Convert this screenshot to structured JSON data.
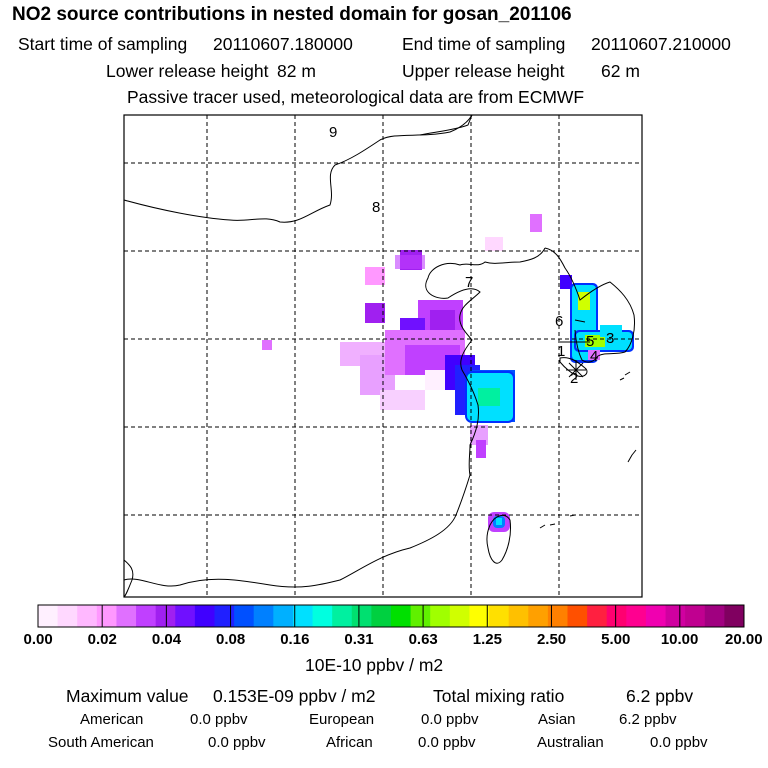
{
  "title": "NO2 source contributions in nested domain for gosan_201106",
  "sampling": {
    "start_label": "Start time of sampling",
    "start_value": "20110607.180000",
    "end_label": "End time of sampling",
    "end_value": "20110607.210000"
  },
  "release": {
    "lower_label": "Lower release height",
    "lower_value": "82 m",
    "upper_label": "Upper release height",
    "upper_value": "62 m"
  },
  "note": "Passive tracer used, meteorological data are from ECMWF",
  "map_labels": [
    "9",
    "8",
    "7",
    "6",
    "5",
    "3",
    "1",
    "4",
    "2"
  ],
  "colors": {
    "background": "#ffffff",
    "grid": "#000000",
    "coast": "#000000"
  },
  "colorbar": {
    "colors": [
      "#fff0ff",
      "#ffd8ff",
      "#ffb8ff",
      "#ff98ff",
      "#e070ff",
      "#c040ff",
      "#a020f0",
      "#7010ff",
      "#4000ff",
      "#2020ff",
      "#0050ff",
      "#0080ff",
      "#00b0ff",
      "#00e0ff",
      "#00ffe0",
      "#00f0a0",
      "#00e070",
      "#00d040",
      "#00e000",
      "#60f000",
      "#a0ff00",
      "#d0ff00",
      "#ffff00",
      "#ffe000",
      "#ffc000",
      "#ffa000",
      "#ff8000",
      "#ff5000",
      "#ff2040",
      "#ff0070",
      "#ff0090",
      "#f000b0",
      "#d000a0",
      "#c00090",
      "#a00080",
      "#800060"
    ],
    "tick_labels": [
      "0.00",
      "0.02",
      "0.04",
      "0.08",
      "0.16",
      "0.31",
      "0.63",
      "1.25",
      "2.50",
      "5.00",
      "10.00",
      "20.00"
    ],
    "unit": "10E-10 ppbv / m2"
  },
  "summary": {
    "max_label": "Maximum value",
    "max_value": "0.153E-09 ppbv / m2",
    "total_label": "Total mixing ratio",
    "total_value": "6.2 ppbv"
  },
  "regions": [
    {
      "name": "American",
      "value": "0.0 ppbv"
    },
    {
      "name": "European",
      "value": "0.0 ppbv"
    },
    {
      "name": "Asian",
      "value": "6.2 ppbv"
    },
    {
      "name": "South American",
      "value": "0.0 ppbv"
    },
    {
      "name": "African",
      "value": "0.0 ppbv"
    },
    {
      "name": "Australian",
      "value": "0.0 ppbv"
    }
  ]
}
